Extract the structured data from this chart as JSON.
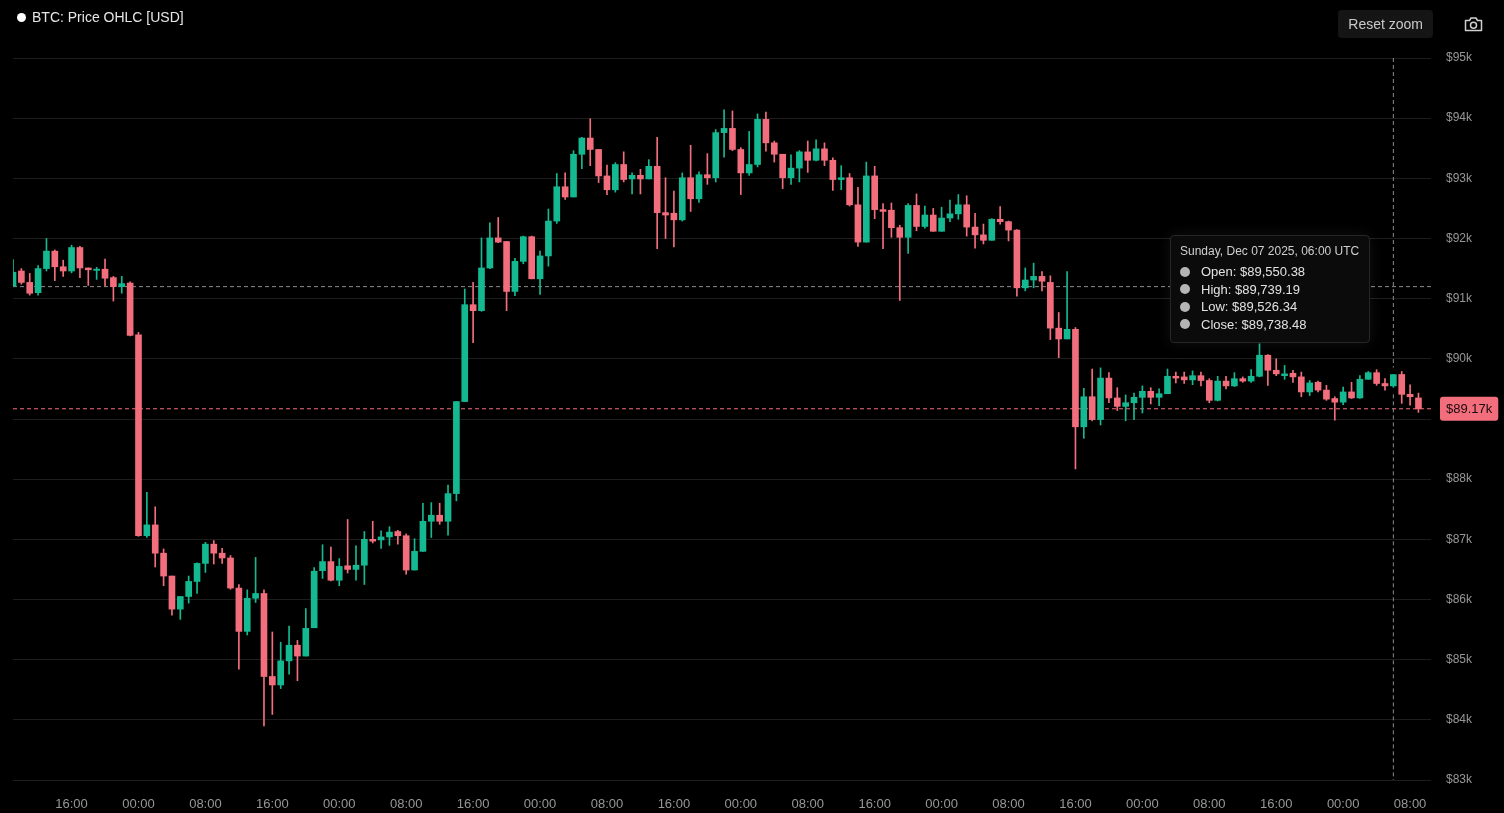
{
  "chart_data": {
    "type": "candlestick",
    "title": "BTC: Price OHLC [USD]",
    "x": [
      "2025-11-30T09:00",
      "2025-11-30T10:00",
      "2025-11-30T11:00",
      "2025-11-30T12:00",
      "2025-11-30T13:00",
      "2025-11-30T14:00",
      "2025-11-30T15:00",
      "2025-11-30T16:00",
      "2025-11-30T17:00",
      "2025-11-30T18:00",
      "2025-11-30T19:00",
      "2025-11-30T20:00",
      "2025-11-30T21:00",
      "2025-11-30T22:00",
      "2025-11-30T23:00",
      "2025-12-01T00:00",
      "2025-12-01T01:00",
      "2025-12-01T02:00",
      "2025-12-01T03:00",
      "2025-12-01T04:00",
      "2025-12-01T05:00",
      "2025-12-01T06:00",
      "2025-12-01T07:00",
      "2025-12-01T08:00",
      "2025-12-01T09:00",
      "2025-12-01T10:00",
      "2025-12-01T11:00",
      "2025-12-01T12:00",
      "2025-12-01T13:00",
      "2025-12-01T14:00",
      "2025-12-01T15:00",
      "2025-12-01T16:00",
      "2025-12-01T17:00",
      "2025-12-01T18:00",
      "2025-12-01T19:00",
      "2025-12-01T20:00",
      "2025-12-01T21:00",
      "2025-12-01T22:00",
      "2025-12-01T23:00",
      "2025-12-02T00:00",
      "2025-12-02T01:00",
      "2025-12-02T02:00",
      "2025-12-02T03:00",
      "2025-12-02T04:00",
      "2025-12-02T05:00",
      "2025-12-02T06:00",
      "2025-12-02T07:00",
      "2025-12-02T08:00",
      "2025-12-02T09:00",
      "2025-12-02T10:00",
      "2025-12-02T11:00",
      "2025-12-02T12:00",
      "2025-12-02T13:00",
      "2025-12-02T14:00",
      "2025-12-02T15:00",
      "2025-12-02T16:00",
      "2025-12-02T17:00",
      "2025-12-02T18:00",
      "2025-12-02T19:00",
      "2025-12-02T20:00",
      "2025-12-02T21:00",
      "2025-12-02T22:00",
      "2025-12-02T23:00",
      "2025-12-03T00:00",
      "2025-12-03T01:00",
      "2025-12-03T02:00",
      "2025-12-03T03:00",
      "2025-12-03T04:00",
      "2025-12-03T05:00",
      "2025-12-03T06:00",
      "2025-12-03T07:00",
      "2025-12-03T08:00",
      "2025-12-03T09:00",
      "2025-12-03T10:00",
      "2025-12-03T11:00",
      "2025-12-03T12:00",
      "2025-12-03T13:00",
      "2025-12-03T14:00",
      "2025-12-03T15:00",
      "2025-12-03T16:00",
      "2025-12-03T17:00",
      "2025-12-03T18:00",
      "2025-12-03T19:00",
      "2025-12-03T20:00",
      "2025-12-03T21:00",
      "2025-12-03T22:00",
      "2025-12-03T23:00",
      "2025-12-04T00:00",
      "2025-12-04T01:00",
      "2025-12-04T02:00",
      "2025-12-04T03:00",
      "2025-12-04T04:00",
      "2025-12-04T05:00",
      "2025-12-04T06:00",
      "2025-12-04T07:00",
      "2025-12-04T08:00",
      "2025-12-04T09:00",
      "2025-12-04T10:00",
      "2025-12-04T11:00",
      "2025-12-04T12:00",
      "2025-12-04T13:00",
      "2025-12-04T14:00",
      "2025-12-04T15:00",
      "2025-12-04T16:00",
      "2025-12-04T17:00",
      "2025-12-04T18:00",
      "2025-12-04T19:00",
      "2025-12-04T20:00",
      "2025-12-04T21:00",
      "2025-12-04T22:00",
      "2025-12-04T23:00",
      "2025-12-05T00:00",
      "2025-12-05T01:00",
      "2025-12-05T02:00",
      "2025-12-05T03:00",
      "2025-12-05T04:00",
      "2025-12-05T05:00",
      "2025-12-05T06:00",
      "2025-12-05T07:00",
      "2025-12-05T08:00",
      "2025-12-05T09:00",
      "2025-12-05T10:00",
      "2025-12-05T11:00",
      "2025-12-05T12:00",
      "2025-12-05T13:00",
      "2025-12-05T14:00",
      "2025-12-05T15:00",
      "2025-12-05T16:00",
      "2025-12-05T17:00",
      "2025-12-05T18:00",
      "2025-12-05T19:00",
      "2025-12-05T20:00",
      "2025-12-05T21:00",
      "2025-12-05T22:00",
      "2025-12-05T23:00",
      "2025-12-06T00:00",
      "2025-12-06T01:00",
      "2025-12-06T02:00",
      "2025-12-06T03:00",
      "2025-12-06T04:00",
      "2025-12-06T05:00",
      "2025-12-06T06:00",
      "2025-12-06T07:00",
      "2025-12-06T08:00",
      "2025-12-06T09:00",
      "2025-12-06T10:00",
      "2025-12-06T11:00",
      "2025-12-06T12:00",
      "2025-12-06T13:00",
      "2025-12-06T14:00",
      "2025-12-06T15:00",
      "2025-12-06T16:00",
      "2025-12-06T17:00",
      "2025-12-06T18:00",
      "2025-12-06T19:00",
      "2025-12-06T20:00",
      "2025-12-06T21:00",
      "2025-12-06T22:00",
      "2025-12-06T23:00",
      "2025-12-07T00:00",
      "2025-12-07T01:00",
      "2025-12-07T02:00",
      "2025-12-07T03:00",
      "2025-12-07T04:00",
      "2025-12-07T05:00",
      "2025-12-07T06:00",
      "2025-12-07T07:00",
      "2025-12-07T08:00",
      "2025-12-07T09:00"
    ],
    "ohlc": [
      [
        91210,
        91650,
        91200,
        91440
      ],
      [
        91460,
        91500,
        91240,
        91270
      ],
      [
        91270,
        91420,
        91060,
        91090
      ],
      [
        91100,
        91550,
        91060,
        91500
      ],
      [
        91500,
        92000,
        91460,
        91790
      ],
      [
        91790,
        91810,
        91300,
        91530
      ],
      [
        91530,
        91640,
        91370,
        91460
      ],
      [
        91460,
        91890,
        91430,
        91850
      ],
      [
        91850,
        91870,
        91350,
        91510
      ],
      [
        91510,
        91510,
        91220,
        91480
      ],
      [
        91470,
        91520,
        91320,
        91490
      ],
      [
        91490,
        91660,
        91210,
        91340
      ],
      [
        91350,
        91370,
        90960,
        91200
      ],
      [
        91200,
        91370,
        91090,
        91250
      ],
      [
        91260,
        91280,
        90380,
        90390
      ],
      [
        90400,
        90440,
        87050,
        87060
      ],
      [
        87060,
        87780,
        87030,
        87240
      ],
      [
        87240,
        87540,
        86540,
        86770
      ],
      [
        86770,
        86840,
        86230,
        86390
      ],
      [
        86390,
        86390,
        85740,
        85840
      ],
      [
        85840,
        86050,
        85670,
        86050
      ],
      [
        86050,
        86390,
        85940,
        86300
      ],
      [
        86300,
        86610,
        86100,
        86600
      ],
      [
        86600,
        86950,
        86450,
        86920
      ],
      [
        86920,
        86980,
        86590,
        86770
      ],
      [
        86770,
        86850,
        86600,
        86690
      ],
      [
        86690,
        86730,
        86170,
        86190
      ],
      [
        86190,
        86250,
        84840,
        85470
      ],
      [
        85470,
        86160,
        85410,
        86020
      ],
      [
        86020,
        86700,
        85950,
        86100
      ],
      [
        86100,
        86160,
        83900,
        84720
      ],
      [
        84720,
        85460,
        84090,
        84580
      ],
      [
        84580,
        85290,
        84520,
        84980
      ],
      [
        84980,
        85560,
        84760,
        85240
      ],
      [
        85240,
        85320,
        84650,
        85060
      ],
      [
        85060,
        85850,
        85060,
        85520
      ],
      [
        85530,
        86530,
        85530,
        86470
      ],
      [
        86480,
        86910,
        86350,
        86630
      ],
      [
        86630,
        86870,
        86310,
        86320
      ],
      [
        86320,
        86680,
        86230,
        86550
      ],
      [
        86560,
        87330,
        86440,
        86500
      ],
      [
        86500,
        86890,
        86320,
        86570
      ],
      [
        86570,
        87130,
        86250,
        87000
      ],
      [
        87000,
        87300,
        86940,
        86970
      ],
      [
        86990,
        87140,
        86850,
        87040
      ],
      [
        87040,
        87210,
        86900,
        87120
      ],
      [
        87130,
        87150,
        86920,
        87060
      ],
      [
        87060,
        87090,
        86420,
        86490
      ],
      [
        86490,
        87010,
        86490,
        86800
      ],
      [
        86800,
        87600,
        86800,
        87300
      ],
      [
        87300,
        87610,
        87030,
        87400
      ],
      [
        87400,
        87600,
        87250,
        87300
      ],
      [
        87300,
        87900,
        87070,
        87760
      ],
      [
        87760,
        89290,
        87640,
        89290
      ],
      [
        89290,
        91160,
        89290,
        90900
      ],
      [
        90900,
        91270,
        90270,
        90800
      ],
      [
        90800,
        92010,
        90790,
        91510
      ],
      [
        91510,
        92260,
        91500,
        92010
      ],
      [
        92010,
        92350,
        91930,
        91940
      ],
      [
        91950,
        91950,
        90800,
        91120
      ],
      [
        91120,
        91670,
        91050,
        91620
      ],
      [
        91620,
        92040,
        91580,
        92030
      ],
      [
        92030,
        92040,
        91330,
        91330
      ],
      [
        91330,
        91790,
        91070,
        91710
      ],
      [
        91710,
        92490,
        91540,
        92290
      ],
      [
        92290,
        93080,
        92250,
        92860
      ],
      [
        92860,
        93090,
        92650,
        92690
      ],
      [
        92690,
        93460,
        92690,
        93400
      ],
      [
        93400,
        93680,
        93160,
        93670
      ],
      [
        93670,
        93990,
        93210,
        93480
      ],
      [
        93480,
        93480,
        92930,
        93040
      ],
      [
        93040,
        93220,
        92730,
        92810
      ],
      [
        92810,
        93260,
        92770,
        93230
      ],
      [
        93230,
        93440,
        92940,
        92980
      ],
      [
        92990,
        93090,
        92740,
        93050
      ],
      [
        93050,
        93150,
        92740,
        92990
      ],
      [
        92990,
        93310,
        92990,
        93200
      ],
      [
        93200,
        93680,
        91830,
        92430
      ],
      [
        92430,
        93010,
        92000,
        92390
      ],
      [
        92420,
        92790,
        91860,
        92310
      ],
      [
        92310,
        93090,
        92290,
        93010
      ],
      [
        93010,
        93550,
        92450,
        92660
      ],
      [
        92660,
        93110,
        92600,
        93060
      ],
      [
        93060,
        93410,
        92900,
        93010
      ],
      [
        93010,
        93810,
        92940,
        93760
      ],
      [
        93760,
        94140,
        93350,
        93830
      ],
      [
        93830,
        94120,
        93460,
        93480
      ],
      [
        93480,
        93510,
        92730,
        93090
      ],
      [
        93090,
        93780,
        93050,
        93230
      ],
      [
        93230,
        94070,
        93190,
        93980
      ],
      [
        93980,
        94100,
        93450,
        93590
      ],
      [
        93590,
        93620,
        93270,
        93400
      ],
      [
        93400,
        93400,
        92830,
        93010
      ],
      [
        93010,
        93390,
        92900,
        93170
      ],
      [
        93170,
        93460,
        92940,
        93440
      ],
      [
        93440,
        93620,
        93100,
        93300
      ],
      [
        93300,
        93640,
        93290,
        93490
      ],
      [
        93490,
        93590,
        93210,
        93300
      ],
      [
        93300,
        93340,
        92800,
        92980
      ],
      [
        92980,
        93210,
        92810,
        93010
      ],
      [
        93010,
        93080,
        92540,
        92560
      ],
      [
        92560,
        92850,
        91870,
        91940
      ],
      [
        91940,
        93270,
        91940,
        93040
      ],
      [
        93040,
        93200,
        92330,
        92480
      ],
      [
        92480,
        92580,
        91830,
        92450
      ],
      [
        92470,
        92590,
        92020,
        92180
      ],
      [
        92180,
        92220,
        90970,
        92020
      ],
      [
        92020,
        92580,
        91750,
        92550
      ],
      [
        92550,
        92740,
        92130,
        92200
      ],
      [
        92200,
        92540,
        92170,
        92390
      ],
      [
        92390,
        92500,
        92120,
        92120
      ],
      [
        92120,
        92520,
        92120,
        92340
      ],
      [
        92340,
        92640,
        92280,
        92410
      ],
      [
        92410,
        92730,
        92320,
        92560
      ],
      [
        92560,
        92710,
        92040,
        92190
      ],
      [
        92190,
        92420,
        91840,
        92060
      ],
      [
        92060,
        92240,
        91910,
        91970
      ],
      [
        91970,
        92330,
        91970,
        92320
      ],
      [
        92320,
        92530,
        92240,
        92280
      ],
      [
        92280,
        92290,
        91960,
        92140
      ],
      [
        92140,
        92150,
        91040,
        91180
      ],
      [
        91180,
        91510,
        91130,
        91310
      ],
      [
        91310,
        91590,
        91180,
        91370
      ],
      [
        91370,
        91450,
        91130,
        91290
      ],
      [
        91270,
        91380,
        90320,
        90510
      ],
      [
        90510,
        90770,
        90020,
        90330
      ],
      [
        90330,
        91450,
        90330,
        90490
      ],
      [
        90490,
        90520,
        88170,
        88870
      ],
      [
        88870,
        89510,
        88680,
        89370
      ],
      [
        89370,
        89830,
        88970,
        88990
      ],
      [
        88990,
        89850,
        88900,
        89680
      ],
      [
        89680,
        89770,
        89270,
        89350
      ],
      [
        89350,
        89520,
        89140,
        89210
      ],
      [
        89210,
        89400,
        88970,
        89270
      ],
      [
        89270,
        89430,
        88990,
        89360
      ],
      [
        89360,
        89550,
        89100,
        89460
      ],
      [
        89460,
        89520,
        89250,
        89360
      ],
      [
        89360,
        89500,
        89220,
        89420
      ],
      [
        89420,
        89830,
        89420,
        89710
      ],
      [
        89710,
        89780,
        89600,
        89680
      ],
      [
        89700,
        89780,
        89590,
        89650
      ],
      [
        89650,
        89800,
        89570,
        89720
      ],
      [
        89720,
        89780,
        89550,
        89640
      ],
      [
        89640,
        89670,
        89270,
        89310
      ],
      [
        89310,
        89710,
        89300,
        89630
      ],
      [
        89630,
        89710,
        89500,
        89550
      ],
      [
        89550,
        89770,
        89540,
        89670
      ],
      [
        89670,
        89700,
        89610,
        89630
      ],
      [
        89630,
        89820,
        89610,
        89710
      ],
      [
        89710,
        90250,
        89700,
        90060
      ],
      [
        90060,
        90070,
        89560,
        89810
      ],
      [
        89810,
        90000,
        89720,
        89750
      ],
      [
        89720,
        89890,
        89660,
        89750
      ],
      [
        89760,
        89810,
        89610,
        89700
      ],
      [
        89700,
        89780,
        89370,
        89450
      ],
      [
        89450,
        89640,
        89390,
        89600
      ],
      [
        89610,
        89630,
        89450,
        89480
      ],
      [
        89480,
        89560,
        89310,
        89330
      ],
      [
        89340,
        89370,
        88980,
        89280
      ],
      [
        89280,
        89530,
        89240,
        89450
      ],
      [
        89450,
        89610,
        89340,
        89350
      ],
      [
        89350,
        89720,
        89340,
        89660
      ],
      [
        89660,
        89790,
        89660,
        89770
      ],
      [
        89770,
        89820,
        89560,
        89590
      ],
      [
        89590,
        89670,
        89480,
        89550
      ],
      [
        89550.38,
        89739.19,
        89526.34,
        89738.48
      ],
      [
        89740,
        89790,
        89260,
        89410
      ],
      [
        89410,
        89570,
        89230,
        89370
      ],
      [
        89350,
        89430,
        89110,
        89170
      ]
    ],
    "colors": [
      "#15b991",
      "#f26e7d",
      "#f26e7d",
      "#15b991",
      "#15b991",
      "#f26e7d",
      "#f26e7d",
      "#15b991",
      "#f26e7d",
      "#f26e7d",
      "#15b991",
      "#f26e7d",
      "#f26e7d",
      "#15b991",
      "#f26e7d",
      "#f26e7d",
      "#15b991",
      "#f26e7d",
      "#f26e7d",
      "#f26e7d",
      "#15b991",
      "#15b991",
      "#15b991",
      "#15b991",
      "#f26e7d",
      "#f26e7d",
      "#f26e7d",
      "#f26e7d",
      "#15b991",
      "#15b991",
      "#f26e7d",
      "#f26e7d",
      "#15b991",
      "#15b991",
      "#f26e7d",
      "#15b991",
      "#15b991",
      "#15b991",
      "#f26e7d",
      "#15b991",
      "#f26e7d",
      "#15b991",
      "#15b991",
      "#f26e7d",
      "#15b991",
      "#15b991",
      "#f26e7d",
      "#f26e7d",
      "#15b991",
      "#15b991",
      "#15b991",
      "#f26e7d",
      "#15b991",
      "#15b991",
      "#15b991",
      "#f26e7d",
      "#15b991",
      "#15b991",
      "#f26e7d",
      "#f26e7d",
      "#15b991",
      "#15b991",
      "#f26e7d",
      "#15b991",
      "#15b991",
      "#15b991",
      "#f26e7d",
      "#15b991",
      "#15b991",
      "#f26e7d",
      "#f26e7d",
      "#f26e7d",
      "#15b991",
      "#f26e7d",
      "#15b991",
      "#f26e7d",
      "#15b991",
      "#f26e7d",
      "#f26e7d",
      "#f26e7d",
      "#15b991",
      "#f26e7d",
      "#15b991",
      "#f26e7d",
      "#15b991",
      "#15b991",
      "#f26e7d",
      "#f26e7d",
      "#15b991",
      "#15b991",
      "#f26e7d",
      "#f26e7d",
      "#f26e7d",
      "#15b991",
      "#15b991",
      "#f26e7d",
      "#15b991",
      "#f26e7d",
      "#f26e7d",
      "#15b991",
      "#f26e7d",
      "#f26e7d",
      "#15b991",
      "#f26e7d",
      "#f26e7d",
      "#f26e7d",
      "#f26e7d",
      "#15b991",
      "#f26e7d",
      "#15b991",
      "#f26e7d",
      "#15b991",
      "#15b991",
      "#15b991",
      "#f26e7d",
      "#f26e7d",
      "#f26e7d",
      "#15b991",
      "#f26e7d",
      "#f26e7d",
      "#f26e7d",
      "#15b991",
      "#15b991",
      "#f26e7d",
      "#f26e7d",
      "#f26e7d",
      "#15b991",
      "#f26e7d",
      "#15b991",
      "#f26e7d",
      "#15b991",
      "#f26e7d",
      "#f26e7d",
      "#15b991",
      "#15b991",
      "#15b991",
      "#f26e7d",
      "#15b991",
      "#15b991",
      "#f26e7d",
      "#f26e7d",
      "#15b991",
      "#f26e7d",
      "#f26e7d",
      "#15b991",
      "#f26e7d",
      "#15b991",
      "#f26e7d",
      "#15b991",
      "#15b991",
      "#f26e7d",
      "#f26e7d",
      "#15b991",
      "#f26e7d",
      "#f26e7d",
      "#15b991",
      "#f26e7d",
      "#f26e7d",
      "#f26e7d",
      "#15b991",
      "#f26e7d",
      "#15b991",
      "#15b991",
      "#f26e7d",
      "#f26e7d",
      "#15b991",
      "#f26e7d",
      "#f26e7d",
      "#f26e7d"
    ],
    "xlim": [
      "2025-11-30T09:00",
      "2025-12-07T10:30"
    ],
    "xticks": [
      {
        "value": "2025-11-30T16:00",
        "label": "16:00"
      },
      {
        "value": "2025-12-01T00:00",
        "label": "00:00"
      },
      {
        "value": "2025-12-01T08:00",
        "label": "08:00"
      },
      {
        "value": "2025-12-01T16:00",
        "label": "16:00"
      },
      {
        "value": "2025-12-02T00:00",
        "label": "00:00"
      },
      {
        "value": "2025-12-02T08:00",
        "label": "08:00"
      },
      {
        "value": "2025-12-02T16:00",
        "label": "16:00"
      },
      {
        "value": "2025-12-03T00:00",
        "label": "00:00"
      },
      {
        "value": "2025-12-03T08:00",
        "label": "08:00"
      },
      {
        "value": "2025-12-03T16:00",
        "label": "16:00"
      },
      {
        "value": "2025-12-04T00:00",
        "label": "00:00"
      },
      {
        "value": "2025-12-04T08:00",
        "label": "08:00"
      },
      {
        "value": "2025-12-04T16:00",
        "label": "16:00"
      },
      {
        "value": "2025-12-05T00:00",
        "label": "00:00"
      },
      {
        "value": "2025-12-05T08:00",
        "label": "08:00"
      },
      {
        "value": "2025-12-05T16:00",
        "label": "16:00"
      },
      {
        "value": "2025-12-06T00:00",
        "label": "00:00"
      },
      {
        "value": "2025-12-06T08:00",
        "label": "08:00"
      },
      {
        "value": "2025-12-06T16:00",
        "label": "16:00"
      },
      {
        "value": "2025-12-07T00:00",
        "label": "00:00"
      },
      {
        "value": "2025-12-07T08:00",
        "label": "08:00"
      }
    ],
    "ylim": [
      83000,
      95000
    ],
    "yticks": [
      {
        "value": 83000,
        "label": "$83k"
      },
      {
        "value": 84000,
        "label": "$84k"
      },
      {
        "value": 85000,
        "label": "$85k"
      },
      {
        "value": 86000,
        "label": "$86k"
      },
      {
        "value": 87000,
        "label": "$87k"
      },
      {
        "value": 88000,
        "label": "$88k"
      },
      {
        "value": 89000,
        "label": null
      },
      {
        "value": 90000,
        "label": "$90k"
      },
      {
        "value": 91000,
        "label": "$91k"
      },
      {
        "value": 92000,
        "label": "$92k"
      },
      {
        "value": 93000,
        "label": "$93k"
      },
      {
        "value": 94000,
        "label": "$94k"
      },
      {
        "value": 95000,
        "label": "$95k"
      }
    ],
    "grid": "y",
    "legend": false,
    "ref_lines": [
      {
        "axis": "y",
        "value": 89170,
        "label": "$89.17k",
        "color": "#f26e7d",
        "line_style": "dashed"
      },
      {
        "axis": "y",
        "value": 91200,
        "color": "#8c8c8c",
        "line_style": "dashed"
      },
      {
        "axis": "x",
        "value": "2025-12-07T06:00",
        "color": "#8c8c8c",
        "line_style": "dashed"
      }
    ],
    "annotations": [
      "Reset zoom",
      "Sunday, Dec 07 2025, 06:00 UTC",
      "Open: $89,550.38",
      "High: $89,739.19",
      "Low: $89,526.34",
      "Close: $89,738.48"
    ]
  }
}
